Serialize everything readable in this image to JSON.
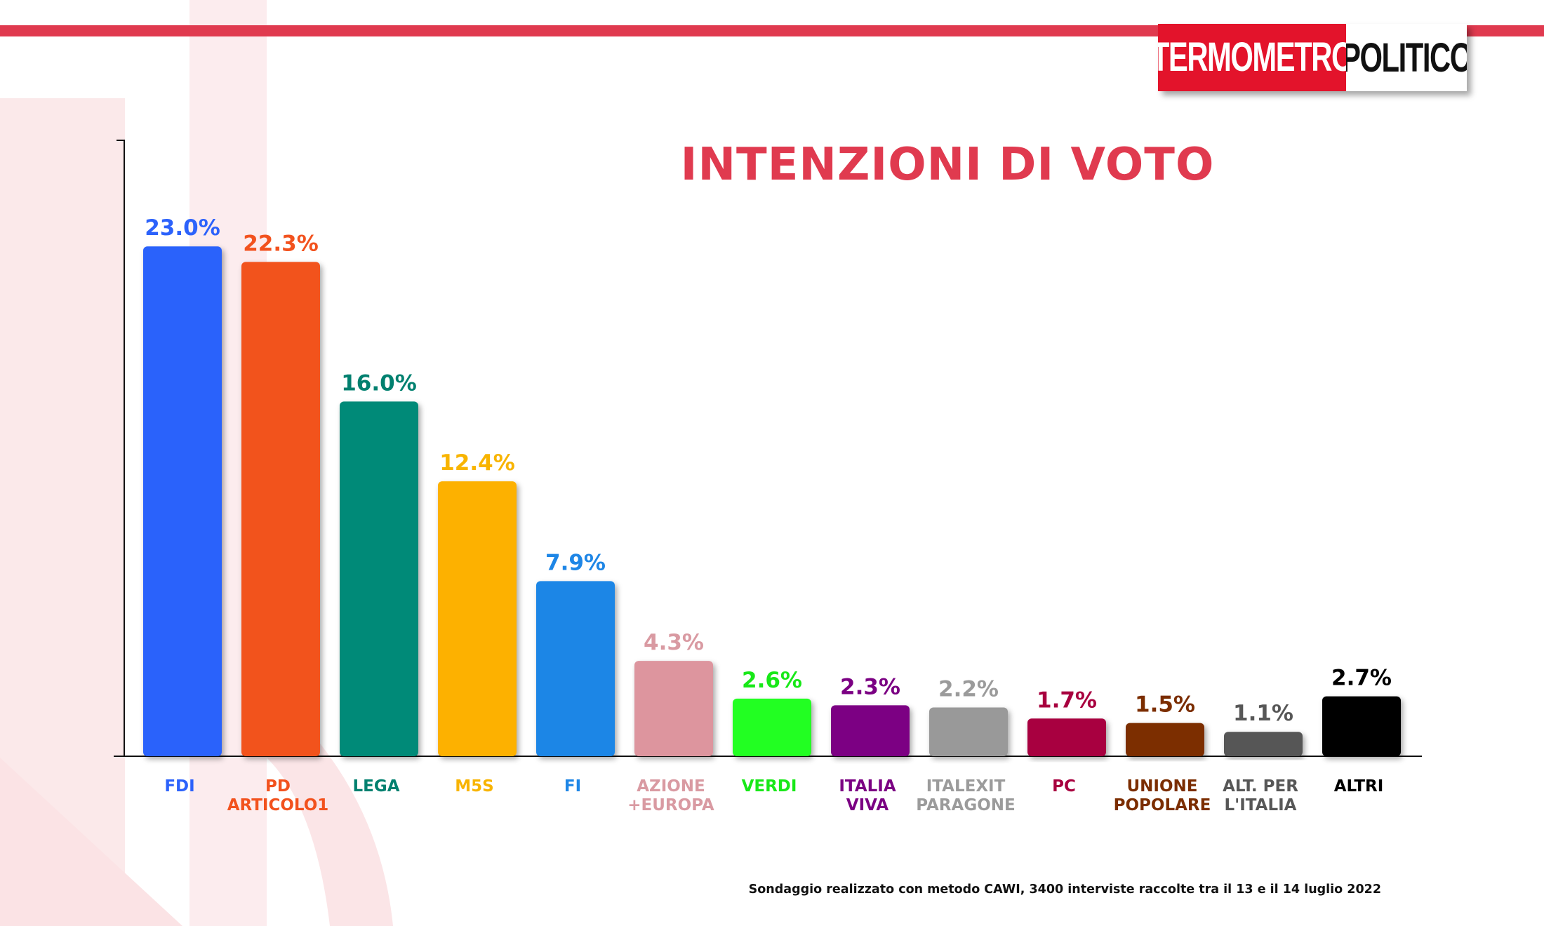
{
  "logo": {
    "part1": "TERMOMETRO",
    "part2": "POLITICO"
  },
  "footnote": "Sondaggio realizzato con metodo CAWI, 3400 interviste raccolte tra il 13 e il 14 luglio 2022",
  "colors": {
    "title": "#e03a4f",
    "top_bar": "#e03a4f",
    "logo_red": "#e3132b"
  },
  "chart_data": {
    "type": "bar",
    "title": "INTENZIONI DI VOTO",
    "ylim": [
      0,
      25
    ],
    "grid": false,
    "categories": [
      [
        "FDI"
      ],
      [
        "PD",
        "ARTICOLO1"
      ],
      [
        "LEGA"
      ],
      [
        "M5S"
      ],
      [
        "FI"
      ],
      [
        "AZIONE",
        "+EUROPA"
      ],
      [
        "VERDI"
      ],
      [
        "ITALIA",
        "VIVA"
      ],
      [
        "ITALEXIT",
        "PARAGONE"
      ],
      [
        "PC"
      ],
      [
        "UNIONE",
        "POPOLARE"
      ],
      [
        "ALT. PER",
        "L'ITALIA"
      ],
      [
        "ALTRI"
      ]
    ],
    "values": [
      23.0,
      22.3,
      16.0,
      12.4,
      7.9,
      4.3,
      2.6,
      2.3,
      2.2,
      1.7,
      1.5,
      1.1,
      2.7
    ],
    "value_labels": [
      "23.0%",
      "22.3%",
      "16.0%",
      "12.4%",
      "7.9%",
      "4.3%",
      "2.6%",
      "2.3%",
      "2.2%",
      "1.7%",
      "1.5%",
      "1.1%",
      "2.7%"
    ],
    "bar_colors": [
      "#2c62fb",
      "#f2521e",
      "#008a78",
      "#fdb100",
      "#1e86e6",
      "#dd959e",
      "#22ff22",
      "#7b0083",
      "#999999",
      "#a8003f",
      "#7b2d00",
      "#575757",
      "#000000"
    ],
    "label_colors": [
      "#2c62fb",
      "#f2521e",
      "#00806f",
      "#f8b400",
      "#1e86e6",
      "#d99aa2",
      "#18e818",
      "#7b0083",
      "#9b9b9b",
      "#a8003f",
      "#7b2d00",
      "#575757",
      "#000000"
    ]
  }
}
